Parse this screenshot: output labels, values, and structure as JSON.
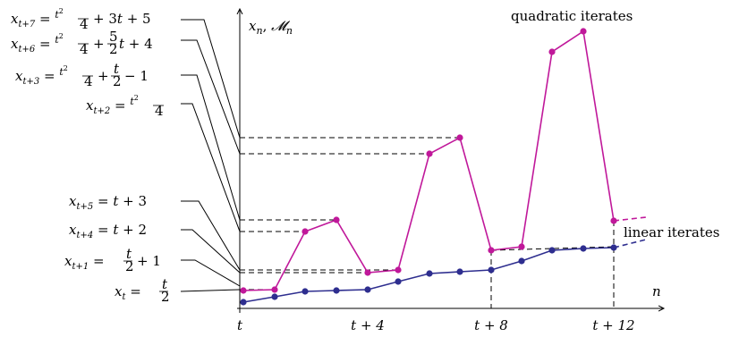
{
  "colors": {
    "quadratic": "#c0189a",
    "linear": "#2e2e8f",
    "axis": "#000000",
    "guide": "#000000"
  },
  "y_axis_label": "x_n, M_n",
  "x_axis_label": "n",
  "quadratic_label": "quadratic iterates",
  "linear_label": "linear iterates",
  "x_ticks": [
    "t",
    "t + 4",
    "t + 8",
    "t + 12"
  ],
  "equations": [
    {
      "lhs": "x_{t+7}",
      "rhs": "t²/4 + 3t + 5"
    },
    {
      "lhs": "x_{t+6}",
      "rhs": "t²/4 + 5/2 t + 4"
    },
    {
      "lhs": "x_{t+3}",
      "rhs": "t²/4 + t/2 − 1"
    },
    {
      "lhs": "x_{t+2}",
      "rhs": "t²/4"
    },
    {
      "lhs": "x_{t+5}",
      "rhs": "t + 3"
    },
    {
      "lhs": "x_{t+4}",
      "rhs": "t + 2"
    },
    {
      "lhs": "x_{t+1}",
      "rhs": "t/2 + 1"
    },
    {
      "lhs": "x_t",
      "rhs": "t/2"
    }
  ]
}
